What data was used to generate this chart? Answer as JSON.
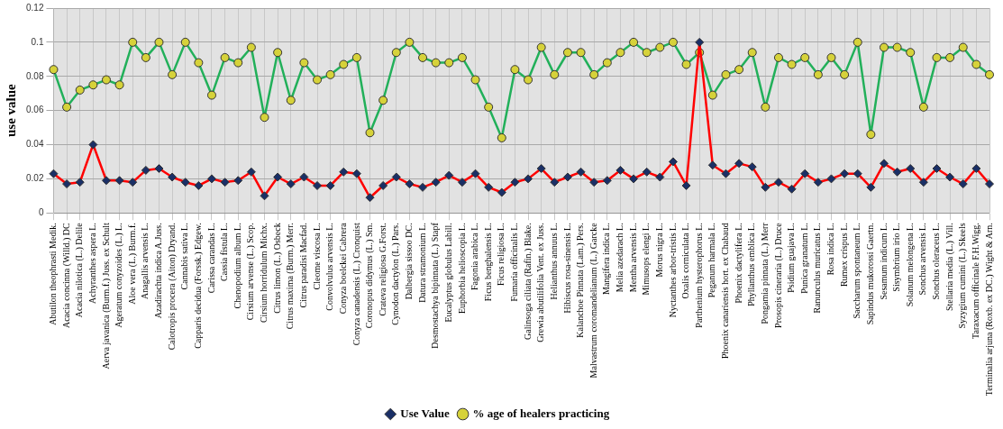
{
  "chart_data": {
    "type": "line",
    "ylabel": "use value",
    "categories": [
      "Abutilon theophrasti Medik.",
      "Acacia concinna (Willd.) DC",
      "Acacia nilotica (L.) Delile",
      "Achyranthes aspera L.",
      "Aerva javanica (Burm.f.) Juss. ex Schult",
      "Ageratum conyzoides (L.) L.",
      "Aloe vera (L.) Burm.f.",
      "Anagallis arvensis L.",
      "Azadirachta indica A.Juss.",
      "Calotropis procera (Aiton) Dryand.",
      "Cannabis sativa L.",
      "Capparis decidua (Forssk.) Edgew.",
      "Carissa carandas L.",
      "Cassia fistula L.",
      "Chenopodium album L.",
      "Cirsium arvense (L.) Scop.",
      "Cirsium horridulum Michx.",
      "Citrus limon (L.) Osbeck",
      "Citrus maxima (Burm.) Merr.",
      "Citrus paradisi Macfad.",
      "Cleome viscosa L.",
      "Convolvulus arvensis L.",
      "Conyza boelckei Cabrera",
      "Conyza canadensis (L.) Cronquist",
      "Coronopus didymus (L.) Sm.",
      "Crateva religiosa G.Forst.",
      "Cynodon dactylon (L.) Pars.",
      "Dalbergia sissoo DC.",
      "Datura stramonium L.",
      "Desmostachya bipinnata (L.) Stapf",
      "Eucalyptus globulus Labill.",
      "Euphorbia helioscopia L.",
      "Fagonia arabica L.",
      "Ficus benghalensis L.",
      "Ficus religiosa L.",
      "Fumaria officinalis L.",
      "Galinsoga ciliata (Rafin.) Blake.",
      "Grewia abutilifolia Vent. ex Juss.",
      "Helianthus annuus L.",
      "Hibiscus rosa-sinensis L.",
      "Kalanchoe Pinnata (Lam.) Pers.",
      "Malvastrum coromandelianum (L.) Garcke",
      "Mangifera indica L.",
      "Melia azedarach L.",
      "Mentha arvensis L.",
      "Mimusops elengi L.",
      "Morus nigra L.",
      "Nyctanthes arbor-tristis L.",
      "Oxalis corniculata L.",
      "Parthenium hysterophorus L.",
      "Peganum harmala L.",
      "Phoenix canariensis hort. ex Chabaud",
      "Phoenix dactylifera L.",
      "Phyllanthus emblica L.",
      "Pongamia pinnata (L.) Merr",
      "Prosopis cineraria (L.) Druce",
      "Psidium guajava L.",
      "Punica granatum L.",
      "Ranunculus muricatus L.",
      "Rosa indica L.",
      "Rumex crispus L.",
      "Saccharum spontaneum L.",
      "Sapindus mukorossi Gaertn.",
      "Sesamum indicum L.",
      "Sisymbrium irio L.",
      "Solanum melongena L.",
      "Sonchus arvensis L.",
      "Sonchus oleraceus L.",
      "Stellaria media (L.) Vill.",
      "Syzygium cumini (L.) Skeels",
      "Taraxacum officinale F.H.Wigg.",
      "Terminalia arjuna (Roxb. ex DC.) Wight & Arn."
    ],
    "series": [
      {
        "name": "Use Value",
        "color": "#ff0000",
        "marker": "diamond",
        "values": [
          0.023,
          0.017,
          0.018,
          0.04,
          0.019,
          0.019,
          0.018,
          0.025,
          0.026,
          0.021,
          0.018,
          0.016,
          0.02,
          0.018,
          0.019,
          0.024,
          0.01,
          0.021,
          0.017,
          0.021,
          0.016,
          0.016,
          0.024,
          0.023,
          0.009,
          0.016,
          0.021,
          0.017,
          0.015,
          0.018,
          0.022,
          0.018,
          0.023,
          0.015,
          0.012,
          0.018,
          0.02,
          0.026,
          0.018,
          0.021,
          0.024,
          0.018,
          0.019,
          0.025,
          0.02,
          0.024,
          0.021,
          0.03,
          0.016,
          0.1,
          0.028,
          0.023,
          0.029,
          0.027,
          0.015,
          0.018,
          0.014,
          0.023,
          0.018,
          0.02,
          0.023,
          0.023,
          0.015,
          0.029,
          0.024,
          0.026,
          0.018,
          0.026,
          0.021,
          0.017,
          0.026,
          0.017
        ]
      },
      {
        "name": "% age of healers practicing",
        "color": "#22b05a",
        "marker": "circle",
        "values": [
          0.084,
          0.062,
          0.072,
          0.075,
          0.078,
          0.075,
          0.1,
          0.091,
          0.1,
          0.081,
          0.1,
          0.088,
          0.069,
          0.091,
          0.088,
          0.097,
          0.056,
          0.094,
          0.066,
          0.088,
          0.078,
          0.081,
          0.087,
          0.091,
          0.047,
          0.066,
          0.094,
          0.1,
          0.091,
          0.088,
          0.088,
          0.091,
          0.078,
          0.062,
          0.044,
          0.084,
          0.078,
          0.097,
          0.081,
          0.094,
          0.094,
          0.081,
          0.088,
          0.094,
          0.1,
          0.094,
          0.097,
          0.1,
          0.087,
          0.094,
          0.069,
          0.081,
          0.084,
          0.094,
          0.062,
          0.091,
          0.087,
          0.091,
          0.081,
          0.091,
          0.081,
          0.1,
          0.046,
          0.097,
          0.097,
          0.094,
          0.062,
          0.091,
          0.091,
          0.097,
          0.087,
          0.081
        ]
      }
    ],
    "ylim": [
      0,
      0.12
    ],
    "yticks": [
      0,
      0.02,
      0.04,
      0.06,
      0.08,
      0.1,
      0.12
    ],
    "grid": true,
    "legend": "bottom"
  }
}
